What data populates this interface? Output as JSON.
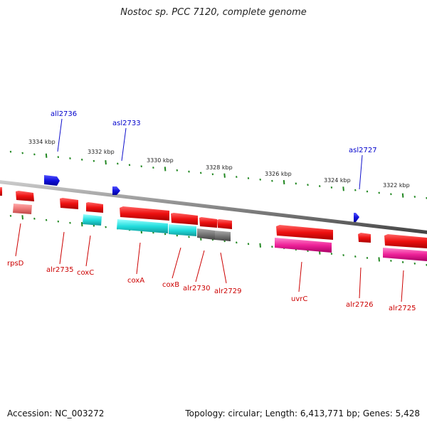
{
  "title": "Nostoc sp. PCC 7120, complete genome",
  "accession": "Accession: NC_003272",
  "summary": "Topology: circular; Length: 6,413,771 bp; Genes: 5,428",
  "scale_labels": [
    "3334 kbp",
    "3332 kbp",
    "3330 kbp",
    "3328 kbp",
    "3326 kbp",
    "3324 kbp",
    "3322 kbp"
  ],
  "genes_top": [
    "all2736",
    "asl2733",
    "asl2727"
  ],
  "genes_bottom": [
    "rpsD",
    "alr2735",
    "coxC",
    "coxA",
    "coxB",
    "alr2730",
    "alr2729",
    "uvrC",
    "alr2726",
    "alr2725"
  ],
  "colors": {
    "backbone": "#8a8a8a",
    "forward_gene": "#ee1111",
    "reverse_gene": "#1111dd",
    "rRNA_like": "#ee7777",
    "cox_cyan": "#22dddd",
    "gray_gene": "#777777",
    "magenta_gene": "#ee2299",
    "tick": "#228822",
    "label_red": "#cc0000",
    "label_blue": "#0000cc"
  }
}
